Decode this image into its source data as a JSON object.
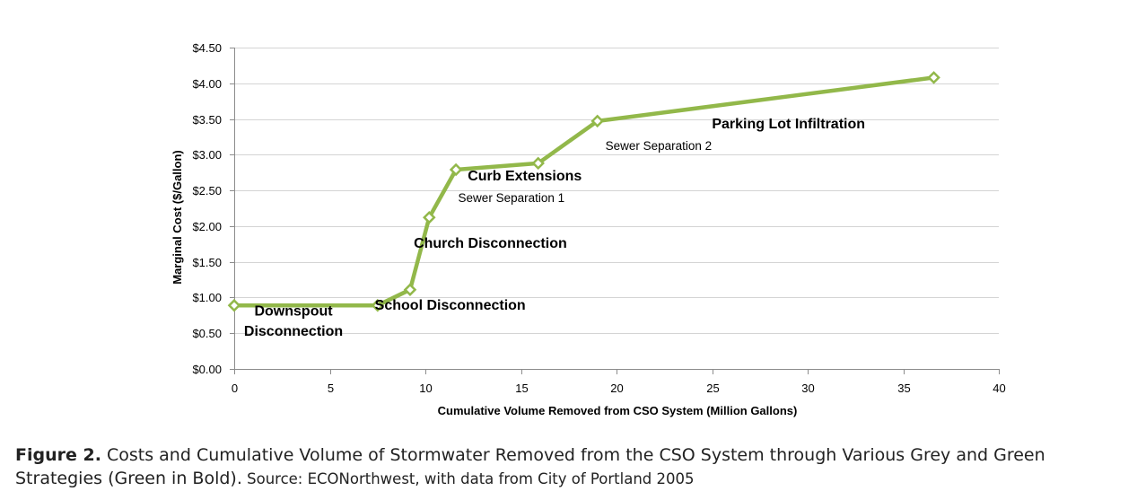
{
  "chart_data": {
    "type": "line",
    "xlabel": "Cumulative Volume Removed from CSO System (Million Gallons)",
    "ylabel": "Marginal Cost ($/Gallon)",
    "xlim": [
      0,
      40
    ],
    "ylim": [
      0,
      4.5
    ],
    "xticks": [
      0,
      5,
      10,
      15,
      20,
      25,
      30,
      35,
      40
    ],
    "yticks": [
      0,
      0.5,
      1.0,
      1.5,
      2.0,
      2.5,
      3.0,
      3.5,
      4.0,
      4.5
    ],
    "ytick_labels": [
      "$0.00",
      "$0.50",
      "$1.00",
      "$1.50",
      "$2.00",
      "$2.50",
      "$3.00",
      "$3.50",
      "$4.00",
      "$4.50"
    ],
    "grid": {
      "y": true,
      "x": false
    },
    "line_color": "#92b84a",
    "series": [
      {
        "x": [
          0,
          7.5,
          9.2,
          10.2,
          11.6,
          15.9,
          19.0,
          36.6
        ],
        "y": [
          0.89,
          0.89,
          1.11,
          2.12,
          2.79,
          2.88,
          3.47,
          4.08
        ]
      }
    ],
    "annotations": [
      {
        "text": "Downspout",
        "x": 3.1,
        "y": 0.745,
        "bold": true
      },
      {
        "text": "Disconnection",
        "x": 3.1,
        "y": 0.465,
        "bold": true
      },
      {
        "text": "School Disconnection",
        "x": 11.3,
        "y": 0.83,
        "bold": true
      },
      {
        "text": "Church Disconnection",
        "x": 13.4,
        "y": 1.7,
        "bold": true
      },
      {
        "text": "Sewer Separation 1",
        "x": 14.5,
        "y": 2.34,
        "bold": false
      },
      {
        "text": "Curb Extensions",
        "x": 15.2,
        "y": 2.64,
        "bold": true
      },
      {
        "text": "Sewer Separation 2",
        "x": 22.2,
        "y": 3.07,
        "bold": false
      },
      {
        "text": "Parking Lot Infiltration",
        "x": 29.0,
        "y": 3.37,
        "bold": true
      }
    ]
  },
  "caption": {
    "label": "Figure 2.",
    "text": " Costs and Cumulative Volume of Stormwater Removed from the CSO System through Various Grey and Green Strategies (Green in Bold).",
    "source": " Source: ECONorthwest, with data from City of Portland 2005"
  }
}
